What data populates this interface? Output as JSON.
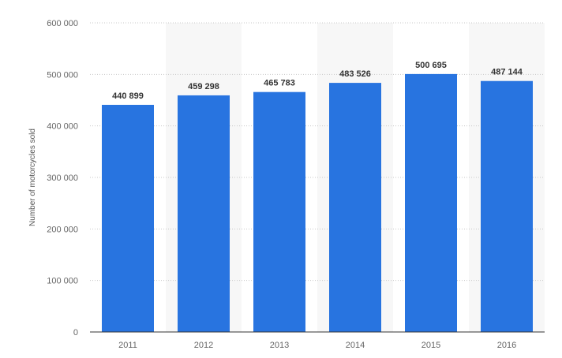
{
  "chart_data": {
    "type": "bar",
    "categories": [
      "2011",
      "2012",
      "2013",
      "2014",
      "2015",
      "2016"
    ],
    "values": [
      440899,
      459298,
      465783,
      483526,
      500695,
      487144
    ],
    "value_labels": [
      "440 899",
      "459 298",
      "465 783",
      "483 526",
      "500 695",
      "487 144"
    ],
    "title": "",
    "xlabel": "",
    "ylabel": "Number of motorcycles sold",
    "ylim": [
      0,
      600000
    ],
    "yticks": [
      0,
      100000,
      200000,
      300000,
      400000,
      500000,
      600000
    ],
    "ytick_labels": [
      "0",
      "100 000",
      "200 000",
      "300 000",
      "400 000",
      "500 000",
      "600 000"
    ],
    "grid": true,
    "legend": "none",
    "colors": {
      "bar": "#2874e0",
      "band": "#f7f7f7"
    }
  }
}
